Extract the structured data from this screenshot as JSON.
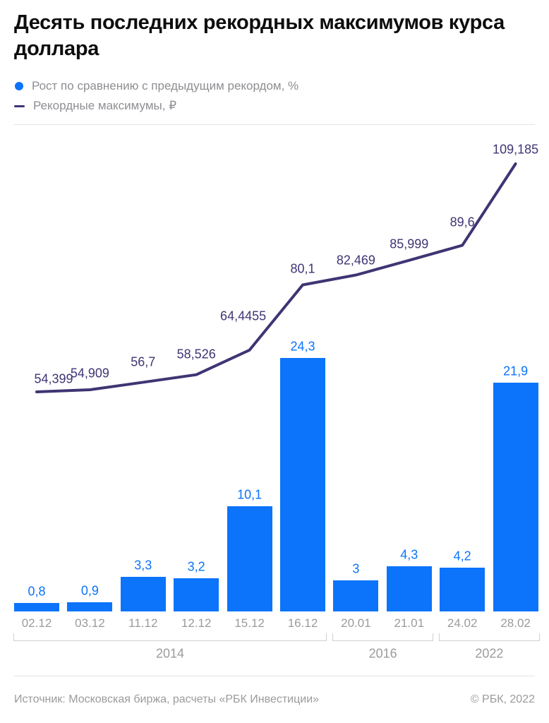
{
  "title": "Десять последних рекордных максимумов курса доллара",
  "legend": {
    "bar_series": "Рост по сравнению с предыдущим рекордом, %",
    "line_series": "Рекордные максимумы, ₽"
  },
  "footer": {
    "source": "Источник: Московская биржа, расчеты «РБК Инвестиции»",
    "copyright": "© РБК, 2022"
  },
  "colors": {
    "bar": "#0b74fa",
    "bar_label": "#0b74fa",
    "line": "#3e3574",
    "line_label": "#3e3574",
    "axis_text": "#9b9b9b",
    "legend_text": "#8e8e93",
    "title_text": "#0d0d0e",
    "divider": "#e4e4e6",
    "bracket": "#d0d0d0"
  },
  "chart_data": {
    "type": "bar",
    "subtype": "bar-line-combo",
    "categories": [
      "02.12",
      "03.12",
      "11.12",
      "12.12",
      "15.12",
      "16.12",
      "20.01",
      "21.01",
      "24.02",
      "28.02"
    ],
    "year_groups": [
      {
        "label": "2014",
        "from": 0,
        "to": 5
      },
      {
        "label": "2016",
        "from": 6,
        "to": 7
      },
      {
        "label": "2022",
        "from": 8,
        "to": 9
      }
    ],
    "series": [
      {
        "name": "Рост по сравнению с предыдущим рекордом, %",
        "type": "bar",
        "values": [
          0.8,
          0.9,
          3.3,
          3.2,
          10.1,
          24.3,
          3,
          4.3,
          4.2,
          21.9
        ],
        "labels": [
          "0,8",
          "0,9",
          "3,3",
          "3,2",
          "10,1",
          "24,3",
          "3",
          "4,3",
          "4,2",
          "21,9"
        ]
      },
      {
        "name": "Рекордные максимумы, ₽",
        "type": "line",
        "values": [
          54.399,
          54.909,
          56.7,
          58.526,
          64.4455,
          80.1,
          82.469,
          85.999,
          89.6,
          109.185
        ],
        "labels": [
          "54,399",
          "54,909",
          "56,7",
          "58,526",
          "64,4455",
          "80,1",
          "82,469",
          "85,999",
          "89,6",
          "109,185"
        ]
      }
    ],
    "legend_position": "top-left",
    "grid": false,
    "title": "Десять последних рекордных максимумов курса доллара"
  }
}
